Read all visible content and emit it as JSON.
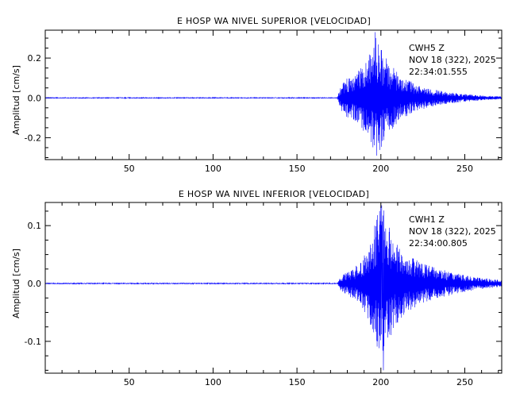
{
  "colors": {
    "trace": "#0000ff",
    "axes": "#000000",
    "background": "#ffffff"
  },
  "chart_data": [
    {
      "type": "line",
      "title": "E HOSP WA NIVEL SUPERIOR [VELOCIDAD]",
      "xlabel": "",
      "ylabel": "Amplitud [cm/s]",
      "xlim": [
        0,
        272
      ],
      "ylim": [
        -0.31,
        0.34
      ],
      "xticks": [
        50,
        100,
        150,
        200,
        250
      ],
      "yticks": [
        -0.2,
        0.0,
        0.2
      ],
      "ytick_labels": [
        "-0.2",
        "0.0",
        "0.2"
      ],
      "info": {
        "station": "CWH5   Z",
        "date": "NOV 18 (322), 2025",
        "time": "22:34:01.555"
      },
      "series": [
        {
          "envelope": {
            "noise": 0.002,
            "envelope_x": [
              0,
              174,
              176,
              180,
              185,
              190,
              194,
              197,
              200,
              204,
              210,
              220,
              230,
              240,
              250,
              260,
              272
            ],
            "envelope_amp": [
              0.002,
              0.003,
              0.06,
              0.1,
              0.12,
              0.17,
              0.24,
              0.31,
              0.26,
              0.18,
              0.13,
              0.07,
              0.045,
              0.03,
              0.02,
              0.012,
              0.007
            ],
            "peak_x": 196.5,
            "peak_value": 0.33,
            "min_x": 197.5,
            "min_value": -0.29
          }
        }
      ]
    },
    {
      "type": "line",
      "title": "E HOSP WA NIVEL INFERIOR [VELOCIDAD]",
      "xlabel": "",
      "ylabel": "Amplitud [cm/s]",
      "xlim": [
        0,
        272
      ],
      "ylim": [
        -0.155,
        0.14
      ],
      "xticks": [
        50,
        100,
        150,
        200,
        250
      ],
      "yticks": [
        -0.1,
        0.0,
        0.1
      ],
      "ytick_labels": [
        "-0.1",
        "0.0",
        "0.1"
      ],
      "info": {
        "station": "CWH1   Z",
        "date": "NOV 18 (322), 2025",
        "time": "22:34:00.805"
      },
      "series": [
        {
          "envelope": {
            "noise": 0.0008,
            "envelope_x": [
              0,
              174,
              176,
              180,
              185,
              190,
              195,
              198,
              201,
              204,
              208,
              215,
              225,
              235,
              245,
              255,
              265,
              272
            ],
            "envelope_amp": [
              0.001,
              0.0015,
              0.012,
              0.02,
              0.03,
              0.05,
              0.085,
              0.12,
              0.14,
              0.11,
              0.075,
              0.05,
              0.035,
              0.025,
              0.018,
              0.012,
              0.008,
              0.006
            ],
            "peak_x": 200.5,
            "peak_value": 0.135,
            "min_x": 201.5,
            "min_value": -0.15
          }
        }
      ]
    }
  ]
}
